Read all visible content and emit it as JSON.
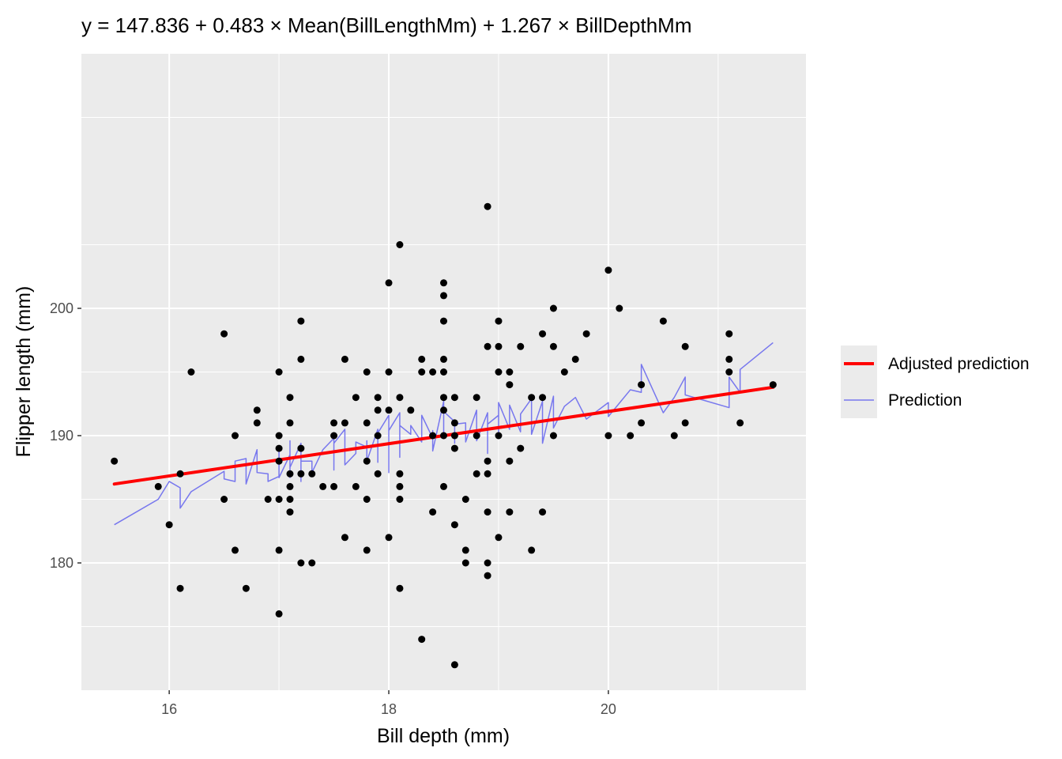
{
  "chart_data": {
    "type": "scatter",
    "title": "y = 147.836 + 0.483 × Mean(BillLengthMm) + 1.267 × BillDepthMm",
    "xlabel": "Bill depth (mm)",
    "ylabel": "Flipper length (mm)",
    "xlim": [
      15.2,
      21.8
    ],
    "ylim": [
      170,
      220
    ],
    "xticks": [
      16,
      18,
      20
    ],
    "yticks": [
      180,
      190,
      200
    ],
    "grid": true,
    "legend_position": "right",
    "legend": [
      {
        "label": "Adjusted prediction",
        "color": "#ff0000",
        "style": "thick-line"
      },
      {
        "label": "Prediction",
        "color": "#7777ee",
        "style": "thin-line"
      }
    ],
    "colors": {
      "panel": "#ebebeb",
      "grid": "#ffffff",
      "points": "#000000"
    },
    "series": [
      {
        "name": "",
        "type": "scatter",
        "points": [
          [
            15.5,
            188
          ],
          [
            15.9,
            186
          ],
          [
            16.0,
            183
          ],
          [
            16.1,
            187
          ],
          [
            16.1,
            178
          ],
          [
            16.2,
            195
          ],
          [
            16.5,
            198
          ],
          [
            16.5,
            185
          ],
          [
            16.6,
            190
          ],
          [
            16.6,
            181
          ],
          [
            16.7,
            178
          ],
          [
            16.8,
            192
          ],
          [
            16.8,
            191
          ],
          [
            16.9,
            185
          ],
          [
            17.0,
            195
          ],
          [
            17.0,
            190
          ],
          [
            17.0,
            189
          ],
          [
            17.0,
            188
          ],
          [
            17.0,
            185
          ],
          [
            17.0,
            181
          ],
          [
            17.0,
            176
          ],
          [
            17.1,
            193
          ],
          [
            17.1,
            191
          ],
          [
            17.1,
            187
          ],
          [
            17.1,
            186
          ],
          [
            17.1,
            185
          ],
          [
            17.1,
            184
          ],
          [
            17.2,
            199
          ],
          [
            17.2,
            196
          ],
          [
            17.2,
            189
          ],
          [
            17.2,
            187
          ],
          [
            17.2,
            180
          ],
          [
            17.3,
            187
          ],
          [
            17.3,
            180
          ],
          [
            17.4,
            186
          ],
          [
            17.5,
            191
          ],
          [
            17.5,
            190
          ],
          [
            17.5,
            186
          ],
          [
            17.6,
            196
          ],
          [
            17.6,
            191
          ],
          [
            17.6,
            182
          ],
          [
            17.7,
            193
          ],
          [
            17.7,
            186
          ],
          [
            17.8,
            195
          ],
          [
            17.8,
            191
          ],
          [
            17.8,
            188
          ],
          [
            17.8,
            185
          ],
          [
            17.8,
            181
          ],
          [
            17.9,
            193
          ],
          [
            17.9,
            192
          ],
          [
            17.9,
            190
          ],
          [
            17.9,
            187
          ],
          [
            18.0,
            202
          ],
          [
            18.0,
            195
          ],
          [
            18.0,
            192
          ],
          [
            18.0,
            182
          ],
          [
            18.1,
            205
          ],
          [
            18.1,
            193
          ],
          [
            18.1,
            187
          ],
          [
            18.1,
            186
          ],
          [
            18.1,
            185
          ],
          [
            18.1,
            178
          ],
          [
            18.2,
            192
          ],
          [
            18.3,
            196
          ],
          [
            18.3,
            195
          ],
          [
            18.3,
            174
          ],
          [
            18.4,
            195
          ],
          [
            18.4,
            190
          ],
          [
            18.4,
            184
          ],
          [
            18.5,
            202
          ],
          [
            18.5,
            201
          ],
          [
            18.5,
            199
          ],
          [
            18.5,
            196
          ],
          [
            18.5,
            195
          ],
          [
            18.5,
            193
          ],
          [
            18.5,
            192
          ],
          [
            18.5,
            190
          ],
          [
            18.5,
            186
          ],
          [
            18.6,
            193
          ],
          [
            18.6,
            191
          ],
          [
            18.6,
            190
          ],
          [
            18.6,
            189
          ],
          [
            18.6,
            183
          ],
          [
            18.6,
            172
          ],
          [
            18.7,
            185
          ],
          [
            18.7,
            181
          ],
          [
            18.7,
            180
          ],
          [
            18.8,
            193
          ],
          [
            18.8,
            190
          ],
          [
            18.8,
            187
          ],
          [
            18.9,
            197
          ],
          [
            18.9,
            188
          ],
          [
            18.9,
            187
          ],
          [
            18.9,
            184
          ],
          [
            18.9,
            180
          ],
          [
            18.9,
            179
          ],
          [
            18.9,
            208
          ],
          [
            19.0,
            199
          ],
          [
            19.0,
            197
          ],
          [
            19.0,
            195
          ],
          [
            19.0,
            190
          ],
          [
            19.0,
            182
          ],
          [
            19.1,
            195
          ],
          [
            19.1,
            194
          ],
          [
            19.1,
            188
          ],
          [
            19.1,
            184
          ],
          [
            19.2,
            197
          ],
          [
            19.2,
            189
          ],
          [
            19.3,
            193
          ],
          [
            19.3,
            181
          ],
          [
            19.4,
            198
          ],
          [
            19.4,
            193
          ],
          [
            19.4,
            184
          ],
          [
            19.5,
            200
          ],
          [
            19.5,
            197
          ],
          [
            19.5,
            190
          ],
          [
            19.6,
            195
          ],
          [
            19.7,
            196
          ],
          [
            19.8,
            198
          ],
          [
            20.0,
            203
          ],
          [
            20.0,
            190
          ],
          [
            20.1,
            200
          ],
          [
            20.2,
            190
          ],
          [
            20.3,
            194
          ],
          [
            20.3,
            191
          ],
          [
            20.5,
            199
          ],
          [
            20.6,
            190
          ],
          [
            20.7,
            197
          ],
          [
            20.7,
            191
          ],
          [
            21.1,
            198
          ],
          [
            21.1,
            196
          ],
          [
            21.1,
            195
          ],
          [
            21.2,
            191
          ],
          [
            21.5,
            194
          ]
        ]
      },
      {
        "name": "Adjusted prediction",
        "type": "line",
        "x": [
          15.5,
          21.5
        ],
        "y": [
          186.2,
          193.8
        ]
      },
      {
        "name": "Prediction",
        "type": "line",
        "x": [
          15.5,
          15.9,
          16.0,
          16.1,
          16.1,
          16.2,
          16.5,
          16.5,
          16.6,
          16.6,
          16.7,
          16.7,
          16.8,
          16.8,
          16.9,
          16.9,
          17.0,
          17.0,
          17.0,
          17.0,
          17.1,
          17.1,
          17.1,
          17.1,
          17.2,
          17.2,
          17.2,
          17.3,
          17.3,
          17.4,
          17.5,
          17.5,
          17.5,
          17.6,
          17.6,
          17.7,
          17.7,
          17.8,
          17.8,
          17.8,
          17.9,
          17.9,
          17.9,
          18.0,
          18.0,
          18.0,
          18.1,
          18.1,
          18.1,
          18.2,
          18.2,
          18.3,
          18.3,
          18.4,
          18.4,
          18.4,
          18.5,
          18.5,
          18.5,
          18.6,
          18.6,
          18.6,
          18.7,
          18.7,
          18.8,
          18.8,
          18.9,
          18.9,
          18.9,
          19.0,
          19.0,
          19.0,
          19.1,
          19.1,
          19.2,
          19.2,
          19.3,
          19.3,
          19.4,
          19.4,
          19.5,
          19.5,
          19.6,
          19.7,
          19.8,
          20.0,
          20.0,
          20.2,
          20.3,
          20.3,
          20.5,
          20.6,
          20.7,
          20.7,
          21.1,
          21.1,
          21.2,
          21.2,
          21.5
        ],
        "y": [
          183.0,
          185.0,
          186.4,
          185.9,
          184.3,
          185.6,
          187.2,
          186.6,
          186.4,
          188.0,
          188.2,
          186.2,
          188.9,
          187.1,
          187.0,
          186.4,
          186.8,
          188.8,
          187.8,
          186.7,
          188.5,
          186.7,
          189.6,
          187.5,
          189.4,
          186.4,
          188.0,
          188.0,
          187.1,
          188.9,
          189.8,
          187.3,
          189.4,
          190.5,
          187.7,
          188.6,
          189.5,
          189.1,
          189.6,
          188.0,
          190.5,
          187.9,
          190.2,
          191.6,
          187.1,
          190.4,
          191.8,
          188.3,
          190.8,
          190.1,
          190.8,
          189.5,
          191.6,
          189.8,
          190.4,
          188.8,
          192.7,
          189.8,
          191.9,
          191.1,
          189.4,
          190.9,
          191.0,
          189.5,
          192.0,
          189.6,
          191.8,
          188.6,
          190.9,
          191.6,
          189.9,
          192.6,
          190.5,
          192.4,
          190.3,
          191.7,
          192.9,
          190.1,
          192.7,
          189.4,
          193.1,
          190.6,
          192.3,
          193.0,
          191.3,
          192.6,
          191.5,
          193.6,
          193.4,
          195.6,
          191.8,
          193.0,
          194.6,
          193.2,
          192.2,
          194.6,
          193.4,
          195.2,
          197.3
        ]
      }
    ]
  }
}
